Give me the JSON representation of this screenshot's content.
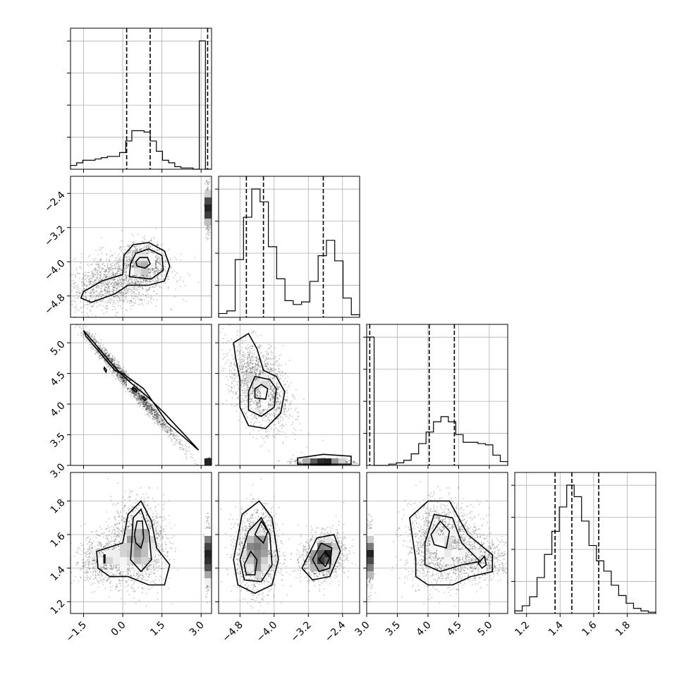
{
  "chart_data": {
    "type": "corner",
    "title": "",
    "parameters": [
      "",
      "",
      "",
      ""
    ],
    "ranges": [
      [
        -2.0,
        3.4
      ],
      [
        -5.3,
        -2.0
      ],
      [
        3.0,
        5.3
      ],
      [
        1.13,
        1.97
      ]
    ],
    "tick_labels": [
      [
        "−1.5",
        "0.0",
        "1.5",
        "3.0"
      ],
      [
        "−4.8",
        "−4.0",
        "−3.2",
        "−2.4"
      ],
      [
        "3.0",
        "3.5",
        "4.0",
        "4.5",
        "5.0"
      ],
      [
        "1.2",
        "1.4",
        "1.6",
        "1.8"
      ]
    ],
    "ticks": [
      [
        -1.5,
        0.0,
        1.5,
        3.0
      ],
      [
        -4.8,
        -4.0,
        -3.2,
        -2.4
      ],
      [
        3.0,
        3.5,
        4.0,
        4.5,
        5.0
      ],
      [
        1.2,
        1.4,
        1.6,
        1.8
      ]
    ],
    "quantiles": [
      [
        0.15,
        1.05,
        3.25
      ],
      [
        -4.65,
        -4.25,
        -2.85
      ],
      [
        3.05,
        4.02,
        4.43
      ],
      [
        1.37,
        1.47,
        1.63
      ]
    ],
    "histograms": [
      {
        "edges_range": [
          -2.0,
          3.4
        ],
        "counts": [
          0.03,
          0.05,
          0.07,
          0.07,
          0.08,
          0.09,
          0.1,
          0.1,
          0.13,
          0.22,
          0.3,
          0.3,
          0.29,
          0.22,
          0.14,
          0.07,
          0.05,
          0.02,
          0.01,
          0.01,
          0.0,
          1.0,
          0.0
        ]
      },
      {
        "edges_range": [
          -5.3,
          -2.0
        ],
        "counts": [
          0.03,
          0.05,
          0.45,
          0.78,
          1.0,
          0.9,
          0.55,
          0.3,
          0.13,
          0.1,
          0.12,
          0.28,
          0.48,
          0.6,
          0.44,
          0.15,
          0.02
        ]
      },
      {
        "edges_range": [
          3.0,
          5.3
        ],
        "counts": [
          1.0,
          0.0,
          0.0,
          0.01,
          0.02,
          0.04,
          0.09,
          0.17,
          0.26,
          0.34,
          0.38,
          0.34,
          0.24,
          0.18,
          0.18,
          0.17,
          0.16,
          0.08,
          0.03
        ]
      },
      {
        "edges_range": [
          1.13,
          1.97
        ],
        "counts": [
          0.02,
          0.06,
          0.13,
          0.28,
          0.46,
          0.64,
          0.83,
          1.0,
          0.91,
          0.72,
          0.53,
          0.41,
          0.33,
          0.22,
          0.14,
          0.08,
          0.04,
          0.02,
          0.01
        ]
      }
    ],
    "scatter_2d": [
      {
        "x_param": 0,
        "y_param": 1,
        "clusters": [
          {
            "x": -0.4,
            "y": -4.5,
            "sx": 1.0,
            "sy": 0.35,
            "rho": 0.3,
            "n": 3000
          },
          {
            "x": 0.8,
            "y": -4.05,
            "sx": 0.4,
            "sy": 0.25,
            "rho": 0.0,
            "n": 2000
          },
          {
            "x": 3.25,
            "y": -2.75,
            "sx": 0.05,
            "sy": 0.25,
            "rho": 0.0,
            "n": 1200
          }
        ]
      },
      {
        "x_param": 0,
        "y_param": 2,
        "clusters": [
          {
            "x": 0.3,
            "y": 4.3,
            "sx": 0.9,
            "sy": 0.45,
            "rho": -0.99,
            "n": 4000
          },
          {
            "x": 3.3,
            "y": 3.05,
            "sx": 0.06,
            "sy": 0.03,
            "rho": 0.0,
            "n": 800
          }
        ]
      },
      {
        "x_param": 1,
        "y_param": 2,
        "clusters": [
          {
            "x": -4.35,
            "y": 4.3,
            "sx": 0.35,
            "sy": 0.35,
            "rho": -0.4,
            "n": 3500
          },
          {
            "x": -2.85,
            "y": 3.05,
            "sx": 0.35,
            "sy": 0.03,
            "rho": 0.0,
            "n": 1200
          }
        ]
      },
      {
        "x_param": 0,
        "y_param": 3,
        "clusters": [
          {
            "x": 0.6,
            "y": 1.55,
            "sx": 0.5,
            "sy": 0.12,
            "rho": 0.0,
            "n": 3500
          },
          {
            "x": -0.7,
            "y": 1.45,
            "sx": 0.6,
            "sy": 0.07,
            "rho": 0.0,
            "n": 1500
          },
          {
            "x": 3.25,
            "y": 1.47,
            "sx": 0.05,
            "sy": 0.1,
            "rho": 0.0,
            "n": 1000
          }
        ]
      },
      {
        "x_param": 1,
        "y_param": 3,
        "clusters": [
          {
            "x": -4.4,
            "y": 1.5,
            "sx": 0.25,
            "sy": 0.12,
            "rho": 0.0,
            "n": 3500
          },
          {
            "x": -2.85,
            "y": 1.47,
            "sx": 0.25,
            "sy": 0.07,
            "rho": 0.2,
            "n": 2500
          }
        ]
      },
      {
        "x_param": 2,
        "y_param": 3,
        "clusters": [
          {
            "x": 4.25,
            "y": 1.55,
            "sx": 0.3,
            "sy": 0.12,
            "rho": 0.0,
            "n": 3500
          },
          {
            "x": 4.9,
            "y": 1.45,
            "sx": 0.25,
            "sy": 0.06,
            "rho": 0.0,
            "n": 1200
          },
          {
            "x": 3.05,
            "y": 1.47,
            "sx": 0.03,
            "sy": 0.1,
            "rho": 0.0,
            "n": 1000
          }
        ]
      }
    ],
    "contours_2d": [
      {
        "x_param": 0,
        "y_param": 1,
        "levels": [
          [
            [
              -1.6,
              -4.85
            ],
            [
              -1.2,
              -4.95
            ],
            [
              -0.3,
              -4.75
            ],
            [
              0.2,
              -4.55
            ],
            [
              1.0,
              -4.55
            ],
            [
              1.6,
              -4.45
            ],
            [
              1.8,
              -4.1
            ],
            [
              1.6,
              -3.75
            ],
            [
              1.0,
              -3.55
            ],
            [
              0.4,
              -3.6
            ],
            [
              0.05,
              -3.85
            ],
            [
              0.0,
              -4.3
            ],
            [
              -0.8,
              -4.45
            ],
            [
              -1.5,
              -4.7
            ]
          ],
          [
            [
              0.25,
              -4.35
            ],
            [
              1.1,
              -4.4
            ],
            [
              1.55,
              -4.2
            ],
            [
              1.5,
              -3.85
            ],
            [
              1.0,
              -3.7
            ],
            [
              0.5,
              -3.8
            ],
            [
              0.3,
              -4.05
            ]
          ],
          [
            [
              0.55,
              -4.1
            ],
            [
              0.85,
              -4.15
            ],
            [
              1.05,
              -4.05
            ],
            [
              0.95,
              -3.9
            ],
            [
              0.65,
              -3.9
            ],
            [
              0.5,
              -4.0
            ]
          ]
        ]
      },
      {
        "x_param": 0,
        "y_param": 2,
        "levels": [
          [
            [
              0.0,
              4.5
            ],
            [
              0.8,
              4.25
            ],
            [
              1.3,
              3.95
            ],
            [
              1.7,
              3.7
            ],
            [
              2.9,
              3.25
            ],
            [
              2.8,
              3.3
            ],
            [
              1.6,
              3.85
            ],
            [
              1.0,
              4.1
            ],
            [
              0.3,
              4.35
            ],
            [
              -0.2,
              4.55
            ],
            [
              -1.5,
              5.2
            ],
            [
              -1.4,
              5.1
            ],
            [
              -0.3,
              4.55
            ]
          ],
          [
            [
              0.4,
              4.28
            ],
            [
              0.55,
              4.22
            ],
            [
              0.5,
              4.2
            ],
            [
              0.35,
              4.25
            ]
          ],
          [
            [
              0.8,
              4.12
            ],
            [
              0.9,
              4.08
            ],
            [
              0.85,
              4.06
            ],
            [
              0.75,
              4.1
            ]
          ],
          [
            [
              -0.7,
              4.6
            ],
            [
              -0.62,
              4.55
            ],
            [
              -0.64,
              4.52
            ],
            [
              -0.72,
              4.57
            ]
          ]
        ]
      },
      {
        "x_param": 1,
        "y_param": 2,
        "levels": [
          [
            [
              -4.95,
              5.0
            ],
            [
              -4.6,
              5.15
            ],
            [
              -4.4,
              4.9
            ],
            [
              -4.25,
              4.55
            ],
            [
              -3.95,
              4.45
            ],
            [
              -3.75,
              4.2
            ],
            [
              -3.85,
              3.85
            ],
            [
              -4.2,
              3.6
            ],
            [
              -4.6,
              3.65
            ],
            [
              -4.8,
              3.95
            ],
            [
              -4.8,
              4.4
            ],
            [
              -4.9,
              4.75
            ]
          ],
          [
            [
              -4.6,
              3.9
            ],
            [
              -4.3,
              3.8
            ],
            [
              -4.0,
              3.95
            ],
            [
              -3.95,
              4.25
            ],
            [
              -4.1,
              4.4
            ],
            [
              -4.45,
              4.45
            ],
            [
              -4.6,
              4.2
            ]
          ],
          [
            [
              -4.45,
              4.1
            ],
            [
              -4.2,
              4.08
            ],
            [
              -4.15,
              4.25
            ],
            [
              -4.3,
              4.32
            ],
            [
              -4.45,
              4.25
            ]
          ],
          [
            [
              -3.45,
              3.02
            ],
            [
              -2.2,
              3.02
            ],
            [
              -2.2,
              3.15
            ],
            [
              -2.85,
              3.18
            ],
            [
              -3.45,
              3.12
            ]
          ]
        ]
      },
      {
        "x_param": 0,
        "y_param": 3,
        "levels": [
          [
            [
              -1.0,
              1.5
            ],
            [
              0.0,
              1.55
            ],
            [
              0.2,
              1.72
            ],
            [
              0.7,
              1.8
            ],
            [
              1.1,
              1.68
            ],
            [
              1.3,
              1.52
            ],
            [
              1.8,
              1.42
            ],
            [
              1.6,
              1.3
            ],
            [
              1.0,
              1.3
            ],
            [
              0.2,
              1.35
            ],
            [
              -0.5,
              1.35
            ],
            [
              -0.95,
              1.4
            ]
          ],
          [
            [
              0.3,
              1.45
            ],
            [
              0.4,
              1.7
            ],
            [
              0.7,
              1.75
            ],
            [
              1.0,
              1.62
            ],
            [
              1.1,
              1.45
            ],
            [
              0.7,
              1.38
            ]
          ],
          [
            [
              0.45,
              1.6
            ],
            [
              0.55,
              1.68
            ],
            [
              0.75,
              1.68
            ],
            [
              0.8,
              1.58
            ],
            [
              0.7,
              1.52
            ],
            [
              0.5,
              1.55
            ]
          ],
          [
            [
              -0.72,
              1.43
            ],
            [
              -0.68,
              1.43
            ],
            [
              -0.68,
              1.48
            ],
            [
              -0.72,
              1.48
            ]
          ]
        ]
      },
      {
        "x_param": 1,
        "y_param": 3,
        "levels": [
          [
            [
              -4.95,
              1.45
            ],
            [
              -4.75,
              1.72
            ],
            [
              -4.35,
              1.8
            ],
            [
              -4.05,
              1.7
            ],
            [
              -3.9,
              1.45
            ],
            [
              -4.05,
              1.3
            ],
            [
              -4.45,
              1.25
            ],
            [
              -4.85,
              1.3
            ]
          ],
          [
            [
              -4.8,
              1.45
            ],
            [
              -4.6,
              1.62
            ],
            [
              -4.3,
              1.7
            ],
            [
              -4.1,
              1.6
            ],
            [
              -4.05,
              1.42
            ],
            [
              -4.3,
              1.32
            ],
            [
              -4.7,
              1.33
            ]
          ],
          [
            [
              -4.7,
              1.42
            ],
            [
              -4.55,
              1.5
            ],
            [
              -4.4,
              1.45
            ],
            [
              -4.45,
              1.36
            ],
            [
              -4.65,
              1.36
            ]
          ],
          [
            [
              -4.45,
              1.6
            ],
            [
              -4.3,
              1.68
            ],
            [
              -4.15,
              1.62
            ],
            [
              -4.25,
              1.55
            ]
          ],
          [
            [
              -3.35,
              1.4
            ],
            [
              -3.0,
              1.58
            ],
            [
              -2.6,
              1.6
            ],
            [
              -2.45,
              1.5
            ],
            [
              -2.7,
              1.35
            ],
            [
              -3.1,
              1.33
            ]
          ],
          [
            [
              -3.1,
              1.45
            ],
            [
              -2.9,
              1.55
            ],
            [
              -2.65,
              1.52
            ],
            [
              -2.7,
              1.4
            ],
            [
              -2.95,
              1.38
            ]
          ],
          [
            [
              -2.95,
              1.45
            ],
            [
              -2.8,
              1.5
            ],
            [
              -2.7,
              1.46
            ],
            [
              -2.8,
              1.41
            ]
          ]
        ]
      },
      {
        "x_param": 2,
        "y_param": 3,
        "levels": [
          [
            [
              3.8,
              1.45
            ],
            [
              3.7,
              1.7
            ],
            [
              4.0,
              1.8
            ],
            [
              4.35,
              1.8
            ],
            [
              4.65,
              1.6
            ],
            [
              5.05,
              1.48
            ],
            [
              5.05,
              1.38
            ],
            [
              4.7,
              1.35
            ],
            [
              4.4,
              1.3
            ],
            [
              4.0,
              1.3
            ],
            [
              3.8,
              1.35
            ]
          ],
          [
            [
              3.95,
              1.55
            ],
            [
              4.1,
              1.72
            ],
            [
              4.4,
              1.7
            ],
            [
              4.55,
              1.55
            ],
            [
              4.85,
              1.44
            ],
            [
              4.55,
              1.42
            ],
            [
              4.2,
              1.38
            ],
            [
              3.95,
              1.42
            ]
          ],
          [
            [
              4.05,
              1.6
            ],
            [
              4.2,
              1.68
            ],
            [
              4.35,
              1.62
            ],
            [
              4.3,
              1.52
            ],
            [
              4.1,
              1.54
            ]
          ],
          [
            [
              4.82,
              1.43
            ],
            [
              4.92,
              1.47
            ],
            [
              4.95,
              1.42
            ],
            [
              4.88,
              1.4
            ]
          ]
        ]
      }
    ],
    "grid": true,
    "color": "#000000"
  }
}
